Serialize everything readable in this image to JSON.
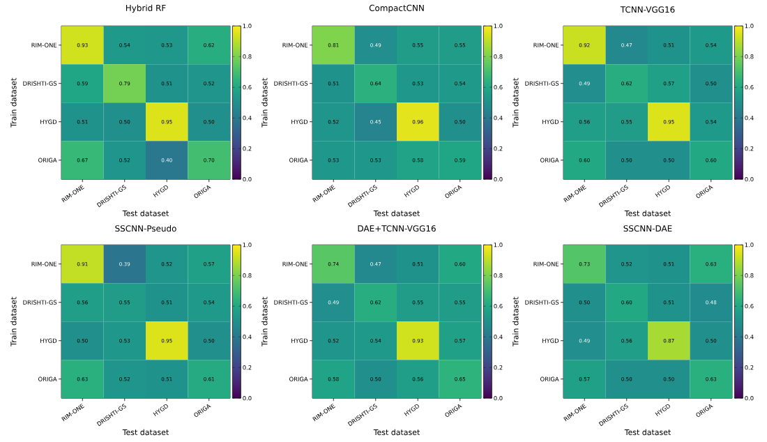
{
  "chart_data": [
    {
      "type": "heatmap",
      "title": "Hybrid RF",
      "xlabel": "Test dataset",
      "ylabel": "Train dataset",
      "categories": [
        "RIM-ONE",
        "DRISHTI-GS",
        "HYGD",
        "ORIGA"
      ],
      "y_categories": [
        "RIM-ONE",
        "DRISHTI-GS",
        "HYGD",
        "ORIGA"
      ],
      "cells": [
        [
          0.93,
          0.54,
          0.53,
          0.62
        ],
        [
          0.59,
          0.79,
          0.51,
          0.52
        ],
        [
          0.51,
          0.5,
          0.95,
          0.5
        ],
        [
          0.67,
          0.52,
          0.4,
          0.7
        ]
      ],
      "cell_labels": [
        [
          "0.93",
          "0.54",
          "0.53",
          "0.62"
        ],
        [
          "0.59",
          "0.79",
          "0.51",
          "0.52"
        ],
        [
          "0.51",
          "0.50",
          "0.95",
          "0.50"
        ],
        [
          "0.67",
          "0.52",
          "0.40",
          "0.70"
        ]
      ],
      "clim": [
        0,
        1
      ],
      "cticks": [
        {
          "value": 0,
          "label": "0.0"
        },
        {
          "value": 0.2,
          "label": "0.2"
        },
        {
          "value": 0.4,
          "label": "0.4"
        },
        {
          "value": 0.6,
          "label": "0.6"
        },
        {
          "value": 0.8,
          "label": "0.8"
        },
        {
          "value": 1,
          "label": "1.0"
        }
      ],
      "data_labels": true
    },
    {
      "type": "heatmap",
      "title": "CompactCNN",
      "xlabel": "Test dataset",
      "ylabel": "Train dataset",
      "categories": [
        "RIM-ONE",
        "DRISHTI-GS",
        "HYGD",
        "ORIGA"
      ],
      "y_categories": [
        "RIM-ONE",
        "DRISHTI-GS",
        "HYGD",
        "ORIGA"
      ],
      "cells": [
        [
          0.81,
          0.49,
          0.55,
          0.55
        ],
        [
          0.51,
          0.64,
          0.53,
          0.54
        ],
        [
          0.52,
          0.45,
          0.96,
          0.5
        ],
        [
          0.53,
          0.53,
          0.58,
          0.59
        ]
      ],
      "cell_labels": [
        [
          "0.81",
          "0.49",
          "0.55",
          "0.55"
        ],
        [
          "0.51",
          "0.64",
          "0.53",
          "0.54"
        ],
        [
          "0.52",
          "0.45",
          "0.96",
          "0.50"
        ],
        [
          "0.53",
          "0.53",
          "0.58",
          "0.59"
        ]
      ],
      "clim": [
        0,
        1
      ],
      "cticks": [
        {
          "value": 0,
          "label": "0.0"
        },
        {
          "value": 0.2,
          "label": "0.2"
        },
        {
          "value": 0.4,
          "label": "0.4"
        },
        {
          "value": 0.6,
          "label": "0.6"
        },
        {
          "value": 0.8,
          "label": "0.8"
        },
        {
          "value": 1,
          "label": "1.0"
        }
      ],
      "data_labels": true
    },
    {
      "type": "heatmap",
      "title": "TCNN-VGG16",
      "xlabel": "Test dataset",
      "ylabel": "Train dataset",
      "categories": [
        "RIM-ONE",
        "DRISHTI-GS",
        "HYGD",
        "ORIGA"
      ],
      "y_categories": [
        "RIM-ONE",
        "DRISHTI-GS",
        "HYGD",
        "ORIGA"
      ],
      "cells": [
        [
          0.92,
          0.47,
          0.51,
          0.54
        ],
        [
          0.49,
          0.62,
          0.57,
          0.5
        ],
        [
          0.56,
          0.55,
          0.95,
          0.54
        ],
        [
          0.6,
          0.5,
          0.5,
          0.6
        ]
      ],
      "cell_labels": [
        [
          "0.92",
          "0.47",
          "0.51",
          "0.54"
        ],
        [
          "0.49",
          "0.62",
          "0.57",
          "0.50"
        ],
        [
          "0.56",
          "0.55",
          "0.95",
          "0.54"
        ],
        [
          "0.60",
          "0.50",
          "0.50",
          "0.60"
        ]
      ],
      "clim": [
        0,
        1
      ],
      "cticks": [
        {
          "value": 0,
          "label": "0.0"
        },
        {
          "value": 0.2,
          "label": "0.2"
        },
        {
          "value": 0.4,
          "label": "0.4"
        },
        {
          "value": 0.6,
          "label": "0.6"
        },
        {
          "value": 0.8,
          "label": "0.8"
        },
        {
          "value": 1,
          "label": "1.0"
        }
      ],
      "data_labels": true
    },
    {
      "type": "heatmap",
      "title": "SSCNN-Pseudo",
      "xlabel": "Test dataset",
      "ylabel": "Train dataset",
      "categories": [
        "RIM-ONE",
        "DRISHTI-GS",
        "HYGD",
        "ORIGA"
      ],
      "y_categories": [
        "RIM-ONE",
        "DRISHTI-GS",
        "HYGD",
        "ORIGA"
      ],
      "cells": [
        [
          0.91,
          0.39,
          0.52,
          0.57
        ],
        [
          0.56,
          0.55,
          0.51,
          0.54
        ],
        [
          0.5,
          0.53,
          0.95,
          0.5
        ],
        [
          0.63,
          0.52,
          0.51,
          0.61
        ]
      ],
      "cell_labels": [
        [
          "0.91",
          "0.39",
          "0.52",
          "0.57"
        ],
        [
          "0.56",
          "0.55",
          "0.51",
          "0.54"
        ],
        [
          "0.50",
          "0.53",
          "0.95",
          "0.50"
        ],
        [
          "0.63",
          "0.52",
          "0.51",
          "0.61"
        ]
      ],
      "clim": [
        0,
        1
      ],
      "cticks": [
        {
          "value": 0,
          "label": "0.0"
        },
        {
          "value": 0.2,
          "label": "0.2"
        },
        {
          "value": 0.4,
          "label": "0.4"
        },
        {
          "value": 0.6,
          "label": "0.6"
        },
        {
          "value": 0.8,
          "label": "0.8"
        },
        {
          "value": 1,
          "label": "1.0"
        }
      ],
      "data_labels": true
    },
    {
      "type": "heatmap",
      "title": "DAE+TCNN-VGG16",
      "xlabel": "Test dataset",
      "ylabel": "Train dataset",
      "categories": [
        "RIM-ONE",
        "DRISHTI-GS",
        "HYGD",
        "ORIGA"
      ],
      "y_categories": [
        "RIM-ONE",
        "DRISHTI-GS",
        "HYGD",
        "ORIGA"
      ],
      "cells": [
        [
          0.74,
          0.47,
          0.51,
          0.6
        ],
        [
          0.49,
          0.62,
          0.55,
          0.55
        ],
        [
          0.52,
          0.54,
          0.93,
          0.57
        ],
        [
          0.58,
          0.5,
          0.56,
          0.65
        ]
      ],
      "cell_labels": [
        [
          "0.74",
          "0.47",
          "0.51",
          "0.60"
        ],
        [
          "0.49",
          "0.62",
          "0.55",
          "0.55"
        ],
        [
          "0.52",
          "0.54",
          "0.93",
          "0.57"
        ],
        [
          "0.58",
          "0.50",
          "0.56",
          "0.65"
        ]
      ],
      "clim": [
        0,
        1
      ],
      "cticks": [
        {
          "value": 0,
          "label": "0.0"
        },
        {
          "value": 0.2,
          "label": "0.2"
        },
        {
          "value": 0.4,
          "label": "0.4"
        },
        {
          "value": 0.6,
          "label": "0.6"
        },
        {
          "value": 0.8,
          "label": "0.8"
        },
        {
          "value": 1,
          "label": "1.0"
        }
      ],
      "data_labels": true
    },
    {
      "type": "heatmap",
      "title": "SSCNN-DAE",
      "xlabel": "Test dataset",
      "ylabel": "Train dataset",
      "categories": [
        "RIM-ONE",
        "DRISHTI-GS",
        "HYGD",
        "ORIGA"
      ],
      "y_categories": [
        "RIM-ONE",
        "DRISHTI-GS",
        "HYGD",
        "ORIGA"
      ],
      "cells": [
        [
          0.73,
          0.52,
          0.51,
          0.63
        ],
        [
          0.5,
          0.6,
          0.51,
          0.48
        ],
        [
          0.49,
          0.56,
          0.87,
          0.5
        ],
        [
          0.57,
          0.5,
          0.5,
          0.63
        ]
      ],
      "cell_labels": [
        [
          "0.73",
          "0.52",
          "0.51",
          "0.63"
        ],
        [
          "0.50",
          "0.60",
          "0.51",
          "0.48"
        ],
        [
          "0.49",
          "0.56",
          "0.87",
          "0.50"
        ],
        [
          "0.57",
          "0.50",
          "0.50",
          "0.63"
        ]
      ],
      "clim": [
        0,
        1
      ],
      "cticks": [
        {
          "value": 0,
          "label": "0.0"
        },
        {
          "value": 0.2,
          "label": "0.2"
        },
        {
          "value": 0.4,
          "label": "0.4"
        },
        {
          "value": 0.6,
          "label": "0.6"
        },
        {
          "value": 0.8,
          "label": "0.8"
        },
        {
          "value": 1,
          "label": "1.0"
        }
      ],
      "data_labels": true
    }
  ]
}
